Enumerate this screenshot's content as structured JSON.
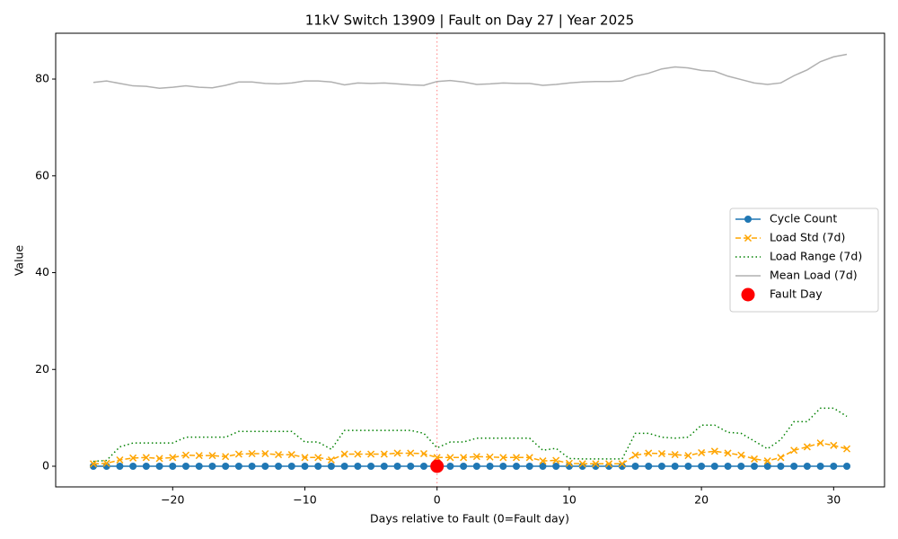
{
  "chart_data": {
    "type": "line",
    "title": "11kV Switch 13909 | Fault on Day 27 | Year 2025",
    "x_label": "Days relative to Fault (0=Fault day)",
    "y_label": "Value",
    "x": [
      -26,
      -25,
      -24,
      -23,
      -22,
      -21,
      -20,
      -19,
      -18,
      -17,
      -16,
      -15,
      -14,
      -13,
      -12,
      -11,
      -10,
      -9,
      -8,
      -7,
      -6,
      -5,
      -4,
      -3,
      -2,
      -1,
      0,
      1,
      2,
      3,
      4,
      5,
      6,
      7,
      8,
      9,
      10,
      11,
      12,
      13,
      14,
      15,
      16,
      17,
      18,
      19,
      20,
      21,
      22,
      23,
      24,
      25,
      26,
      27,
      28,
      29,
      30,
      31
    ],
    "series": [
      {
        "name": "Cycle Count",
        "color": "#1f77b4",
        "linestyle": "solid",
        "marker": "o",
        "values": [
          0,
          0,
          0,
          0,
          0,
          0,
          0,
          0,
          0,
          0,
          0,
          0,
          0,
          0,
          0,
          0,
          0,
          0,
          0,
          0,
          0,
          0,
          0,
          0,
          0,
          0,
          0,
          0,
          0,
          0,
          0,
          0,
          0,
          0,
          0,
          0,
          0,
          0,
          0,
          0,
          0,
          0,
          0,
          0,
          0,
          0,
          0,
          0,
          0,
          0,
          0,
          0,
          0,
          0,
          0,
          0,
          0,
          0
        ]
      },
      {
        "name": "Load Std (7d)",
        "color": "#ffa500",
        "linestyle": "dashed",
        "marker": "x",
        "values": [
          0.5,
          0.6,
          1.3,
          1.7,
          1.8,
          1.6,
          1.8,
          2.3,
          2.2,
          2.2,
          2.0,
          2.5,
          2.6,
          2.6,
          2.4,
          2.4,
          1.8,
          1.8,
          1.3,
          2.5,
          2.5,
          2.5,
          2.5,
          2.7,
          2.7,
          2.6,
          1.8,
          1.8,
          1.8,
          2.0,
          1.9,
          1.8,
          1.8,
          1.8,
          1.1,
          1.2,
          0.6,
          0.5,
          0.5,
          0.5,
          0.5,
          2.3,
          2.7,
          2.6,
          2.4,
          2.2,
          2.8,
          3.1,
          2.7,
          2.3,
          1.5,
          1.1,
          1.8,
          3.3,
          4.0,
          4.8,
          4.3,
          3.6
        ]
      },
      {
        "name": "Load Range (7d)",
        "color": "#008000",
        "linestyle": "dotted",
        "marker": null,
        "values": [
          1.0,
          1.2,
          4.0,
          4.8,
          4.8,
          4.8,
          4.8,
          6.0,
          6.0,
          6.0,
          6.0,
          7.2,
          7.2,
          7.2,
          7.2,
          7.2,
          5.0,
          5.0,
          3.5,
          7.4,
          7.4,
          7.4,
          7.4,
          7.4,
          7.4,
          6.8,
          3.8,
          5.0,
          5.0,
          5.8,
          5.8,
          5.8,
          5.8,
          5.8,
          3.3,
          3.7,
          1.6,
          1.5,
          1.5,
          1.5,
          1.5,
          6.8,
          6.8,
          6.0,
          5.8,
          6.0,
          8.5,
          8.5,
          7.0,
          6.8,
          5.2,
          3.6,
          5.5,
          9.2,
          9.2,
          12.0,
          12.0,
          10.3
        ]
      },
      {
        "name": "Mean Load (7d)",
        "color": "#b0b0b0",
        "linestyle": "solid",
        "marker": null,
        "values": [
          79.3,
          79.6,
          79.1,
          78.6,
          78.5,
          78.1,
          78.3,
          78.6,
          78.3,
          78.2,
          78.7,
          79.4,
          79.4,
          79.1,
          79.0,
          79.2,
          79.6,
          79.6,
          79.4,
          78.8,
          79.2,
          79.1,
          79.2,
          79.0,
          78.8,
          78.7,
          79.5,
          79.7,
          79.4,
          78.9,
          79.0,
          79.2,
          79.1,
          79.1,
          78.7,
          78.9,
          79.2,
          79.4,
          79.5,
          79.5,
          79.6,
          80.6,
          81.2,
          82.1,
          82.5,
          82.3,
          81.8,
          81.6,
          80.6,
          79.9,
          79.2,
          78.9,
          79.2,
          80.7,
          81.9,
          83.6,
          84.6,
          85.1
        ]
      },
      {
        "name": "Fault Day",
        "color": "#ff0000",
        "type": "scatter",
        "x": [
          0
        ],
        "values": [
          0
        ]
      }
    ],
    "xlim": [
      -28.85,
      33.85
    ],
    "ylim": [
      -4.27,
      89.47
    ],
    "xticks": [
      {
        "value": -20,
        "label": "−20"
      },
      {
        "value": -10,
        "label": "−10"
      },
      0,
      10,
      20,
      30
    ],
    "yticks": [
      0,
      20,
      40,
      60,
      80
    ],
    "grid": false,
    "legend": "center right"
  }
}
